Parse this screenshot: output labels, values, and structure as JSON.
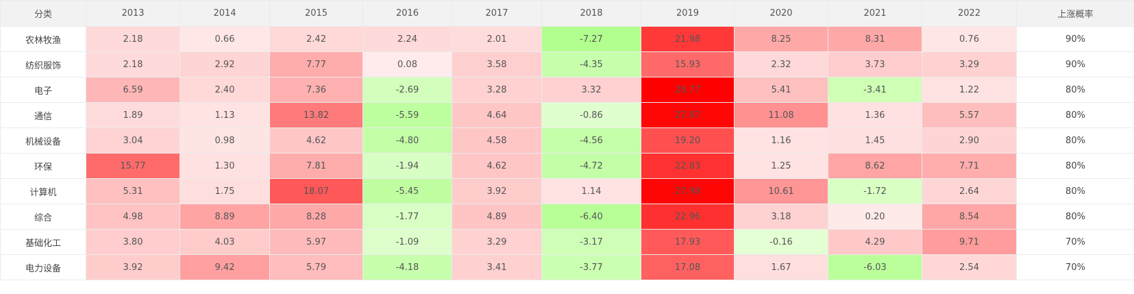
{
  "chart_data": {
    "type": "heatmap",
    "category_header": "分类",
    "probability_header": "上涨概率",
    "years": [
      "2013",
      "2014",
      "2015",
      "2016",
      "2017",
      "2018",
      "2019",
      "2020",
      "2021",
      "2022"
    ],
    "rows": [
      {
        "category": "农林牧渔",
        "values": [
          2.18,
          0.66,
          2.42,
          2.24,
          2.01,
          -7.27,
          21.98,
          8.25,
          8.31,
          0.76
        ],
        "probability": "90%"
      },
      {
        "category": "纺织服饰",
        "values": [
          2.18,
          2.92,
          7.77,
          0.08,
          3.58,
          -4.35,
          15.93,
          2.32,
          3.73,
          3.29
        ],
        "probability": "90%"
      },
      {
        "category": "电子",
        "values": [
          6.59,
          2.4,
          7.36,
          -2.69,
          3.28,
          3.32,
          28.77,
          5.41,
          -3.41,
          1.22
        ],
        "probability": "80%"
      },
      {
        "category": "通信",
        "values": [
          1.89,
          1.13,
          13.82,
          -5.59,
          4.64,
          -0.86,
          27.87,
          11.08,
          1.36,
          5.57
        ],
        "probability": "80%"
      },
      {
        "category": "机械设备",
        "values": [
          3.04,
          0.98,
          4.62,
          -4.8,
          4.58,
          -4.56,
          19.2,
          1.16,
          1.45,
          2.9
        ],
        "probability": "80%"
      },
      {
        "category": "环保",
        "values": [
          15.77,
          1.3,
          7.81,
          -1.94,
          4.62,
          -4.72,
          22.83,
          1.25,
          8.62,
          7.71
        ],
        "probability": "80%"
      },
      {
        "category": "计算机",
        "values": [
          5.31,
          1.75,
          18.07,
          -5.45,
          3.92,
          1.14,
          27.98,
          10.61,
          -1.72,
          2.64
        ],
        "probability": "80%"
      },
      {
        "category": "综合",
        "values": [
          4.98,
          8.89,
          8.28,
          -1.77,
          4.89,
          -6.4,
          22.96,
          3.18,
          0.2,
          8.54
        ],
        "probability": "80%"
      },
      {
        "category": "基础化工",
        "values": [
          3.8,
          4.03,
          5.97,
          -1.09,
          3.29,
          -3.17,
          17.93,
          -0.16,
          4.29,
          9.71
        ],
        "probability": "70%"
      },
      {
        "category": "电力设备",
        "values": [
          3.92,
          9.42,
          5.79,
          -4.18,
          3.41,
          -3.77,
          17.08,
          1.67,
          -6.03,
          2.54
        ],
        "probability": "70%"
      }
    ],
    "colors": {
      "positive_max": "#ff0000",
      "positive_min": "#ffecec",
      "negative_max": "#b2ff8f",
      "negative_min": "#e6ffd6"
    }
  }
}
